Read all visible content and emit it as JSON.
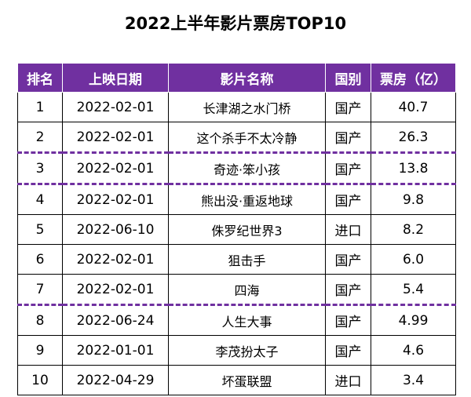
{
  "title": "2022上半年影片票房TOP10",
  "columns": [
    "排名",
    "上映日期",
    "影片名称",
    "国别",
    "票房（亿）"
  ],
  "rows": [
    {
      "rank": "1",
      "date": "2022-02-01",
      "name": "长津湖之水门桥",
      "country": "国产",
      "box": "40.7"
    },
    {
      "rank": "2",
      "date": "2022-02-01",
      "name": "这个杀手不太冷静",
      "country": "国产",
      "box": "26.3"
    },
    {
      "rank": "3",
      "date": "2022-02-01",
      "name": "奇迹·笨小孩",
      "country": "国产",
      "box": "13.8"
    },
    {
      "rank": "4",
      "date": "2022-02-01",
      "name": "熊出没·重返地球",
      "country": "国产",
      "box": "9.8"
    },
    {
      "rank": "5",
      "date": "2022-06-10",
      "name": "侏罗纪世界3",
      "country": "进口",
      "box": "8.2"
    },
    {
      "rank": "6",
      "date": "2022-02-01",
      "name": "狙击手",
      "country": "国产",
      "box": "6.0"
    },
    {
      "rank": "7",
      "date": "2022-02-01",
      "name": "四海",
      "country": "国产",
      "box": "5.4"
    },
    {
      "rank": "8",
      "date": "2022-06-24",
      "name": "人生大事",
      "country": "国产",
      "box": "4.99"
    },
    {
      "rank": "9",
      "date": "2022-01-01",
      "name": "李茂扮太子",
      "country": "国产",
      "box": "4.6"
    },
    {
      "rank": "10",
      "date": "2022-04-29",
      "name": "坏蛋联盟",
      "country": "进口",
      "box": "3.4"
    }
  ],
  "colors": {
    "header_bg": "#7030a0",
    "divider": "#7030a0"
  }
}
